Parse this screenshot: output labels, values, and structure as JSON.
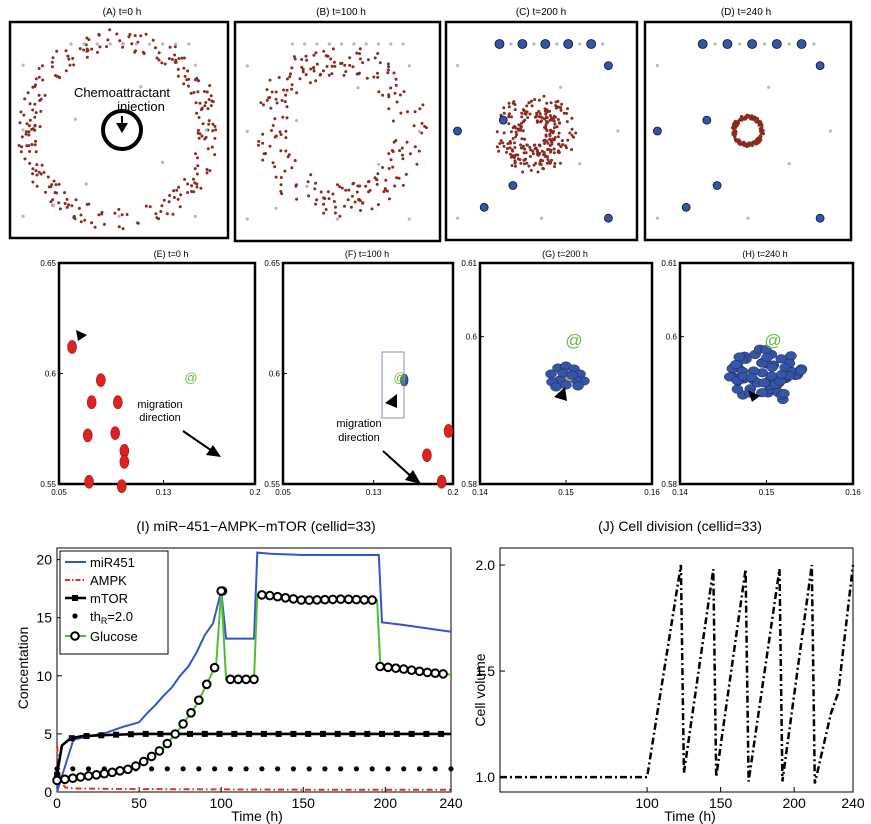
{
  "panel_titles": {
    "A": "(A) t=0 h",
    "B": "(B) t=100 h",
    "C": "(C) t=200 h",
    "D": "(D) t=240 h",
    "E": "(E) t=0 h",
    "F": "(F) t=100 h",
    "G": "(G) t=200 h",
    "H": "(H) t=240 h",
    "I": "(I) miR−451−AMPK−mTOR (cellid=33)",
    "J": "(J) Cell division (cellid=33)"
  },
  "annotations": {
    "chemo_line1": "Chemoattractant",
    "chemo_line2": "injection",
    "migration_line1": "migration",
    "migration_line2": "direction",
    "at_symbol": "@"
  },
  "colors": {
    "tumor_cell": "#8b2a20",
    "tumor_cell_zoom": "#dd2222",
    "migrating_cell": "#3355aa",
    "vessel": "#b8b8b8",
    "mir451": "#3355cc",
    "ampk": "#e83020",
    "mtor": "#000000",
    "glucose": "#55bb33",
    "at_symbol": "#66bb44"
  },
  "chart_data": [
    {
      "type": "scatter",
      "panel": "E",
      "title": "(E) t=0 h",
      "xlim": [
        0.05,
        0.2
      ],
      "ylim": [
        0.55,
        0.65
      ],
      "xticks": [
        "0.05",
        "0.13",
        "0.2"
      ],
      "yticks": [
        "0.55",
        "0.6",
        "0.65"
      ],
      "points": [
        {
          "x": 0.06,
          "y": 0.612
        },
        {
          "x": 0.082,
          "y": 0.597
        },
        {
          "x": 0.075,
          "y": 0.587
        },
        {
          "x": 0.095,
          "y": 0.587
        },
        {
          "x": 0.072,
          "y": 0.572
        },
        {
          "x": 0.093,
          "y": 0.573
        },
        {
          "x": 0.1,
          "y": 0.565
        },
        {
          "x": 0.1,
          "y": 0.56
        },
        {
          "x": 0.073,
          "y": 0.551
        },
        {
          "x": 0.098,
          "y": 0.549
        }
      ]
    },
    {
      "type": "scatter",
      "panel": "F",
      "title": "(F) t=100 h",
      "xlim": [
        0.05,
        0.2
      ],
      "ylim": [
        0.55,
        0.65
      ],
      "xticks": [
        "0.05",
        "0.13",
        "0.2"
      ],
      "yticks": [
        "0.55",
        "0.6",
        "0.65"
      ],
      "points": [
        {
          "x": 0.196,
          "y": 0.574
        },
        {
          "x": 0.177,
          "y": 0.563
        },
        {
          "x": 0.19,
          "y": 0.551
        }
      ],
      "migrating_cell": {
        "x": 0.157,
        "y": 0.597
      }
    },
    {
      "type": "scatter",
      "panel": "G",
      "title": "(G) t=200 h",
      "xlim": [
        0.14,
        0.16
      ],
      "ylim": [
        0.58,
        0.61
      ],
      "xticks": [
        "0.14",
        "0.15",
        "0.16"
      ],
      "yticks": [
        "0.58",
        "0.6",
        "0.61"
      ]
    },
    {
      "type": "scatter",
      "panel": "H",
      "title": "(H) t=240 h",
      "xlim": [
        0.14,
        0.16
      ],
      "ylim": [
        0.58,
        0.61
      ],
      "xticks": [
        "0.14",
        "0.15",
        "0.16"
      ],
      "yticks": [
        "0.58",
        "0.6",
        "0.61"
      ]
    },
    {
      "type": "line",
      "panel": "I",
      "title": "(I) miR−451−AMPK−mTOR (cellid=33)",
      "xlabel": "Time (h)",
      "ylabel": "Concentation",
      "xlim": [
        0,
        240
      ],
      "ylim": [
        0,
        21
      ],
      "xticks": [
        0,
        50,
        100,
        150,
        200,
        240
      ],
      "yticks": [
        0,
        5,
        10,
        15,
        20
      ],
      "legend_position": "top-left",
      "series": [
        {
          "name": "miR451",
          "style": "solid",
          "x": [
            0,
            10,
            20,
            30,
            40,
            50,
            55,
            60,
            65,
            70,
            75,
            80,
            85,
            90,
            95,
            100,
            103,
            110,
            120,
            122,
            130,
            150,
            170,
            190,
            196,
            198,
            210,
            225,
            240
          ],
          "y": [
            0,
            4.5,
            4.8,
            5.1,
            5.6,
            6.0,
            6.8,
            7.5,
            8.3,
            9.0,
            10.0,
            10.8,
            12.0,
            13.5,
            14.5,
            17.3,
            13.2,
            13.2,
            13.2,
            20.6,
            20.5,
            20.4,
            20.4,
            20.4,
            20.4,
            14.6,
            14.4,
            14.1,
            13.8
          ]
        },
        {
          "name": "AMPK",
          "style": "dash-dot",
          "x": [
            0,
            2,
            5,
            10,
            50,
            100,
            150,
            200,
            240
          ],
          "y": [
            4.0,
            1.0,
            0.4,
            0.3,
            0.25,
            0.22,
            0.2,
            0.2,
            0.2
          ]
        },
        {
          "name": "mTOR",
          "style": "line-square",
          "x": [
            0,
            3,
            8,
            15,
            30,
            50,
            100,
            150,
            200,
            240
          ],
          "y": [
            1.5,
            4.0,
            4.6,
            4.8,
            4.9,
            5.0,
            5.0,
            5.0,
            5.0,
            5.0
          ]
        },
        {
          "name": "th_R=2.0",
          "style": "dots",
          "x": [
            0,
            240
          ],
          "y": [
            2.0,
            2.0
          ]
        },
        {
          "name": "Glucose",
          "style": "line-circle",
          "x": [
            0,
            15,
            30,
            45,
            55,
            65,
            75,
            85,
            92,
            97,
            100,
            103,
            108,
            115,
            120,
            122,
            130,
            150,
            175,
            195,
            197,
            210,
            225,
            240
          ],
          "y": [
            1.0,
            1.3,
            1.6,
            2.0,
            2.8,
            3.8,
            5.5,
            7.5,
            9.5,
            11.0,
            17.3,
            9.7,
            9.7,
            9.7,
            9.7,
            17.0,
            16.9,
            16.5,
            16.6,
            16.5,
            10.8,
            10.6,
            10.3,
            10.1
          ]
        }
      ]
    },
    {
      "type": "line",
      "panel": "J",
      "title": "(J) Cell division (cellid=33)",
      "xlabel": "Time (h)",
      "ylabel": "Cell volume",
      "xlim": [
        0,
        240
      ],
      "ylim": [
        0.93,
        2.08
      ],
      "xticks": [
        100,
        150,
        200,
        240
      ],
      "yticks": [
        1.0,
        1.5,
        2.0
      ],
      "series": [
        {
          "name": "",
          "style": "dash-dot",
          "x": [
            0,
            100,
            123,
            125,
            145,
            147,
            167,
            169,
            190,
            192,
            212,
            214,
            225,
            230,
            240
          ],
          "y": [
            1.0,
            1.0,
            2.0,
            1.02,
            1.98,
            1.0,
            1.98,
            0.98,
            1.98,
            0.98,
            2.0,
            0.97,
            1.3,
            1.4,
            2.0
          ]
        }
      ]
    }
  ]
}
